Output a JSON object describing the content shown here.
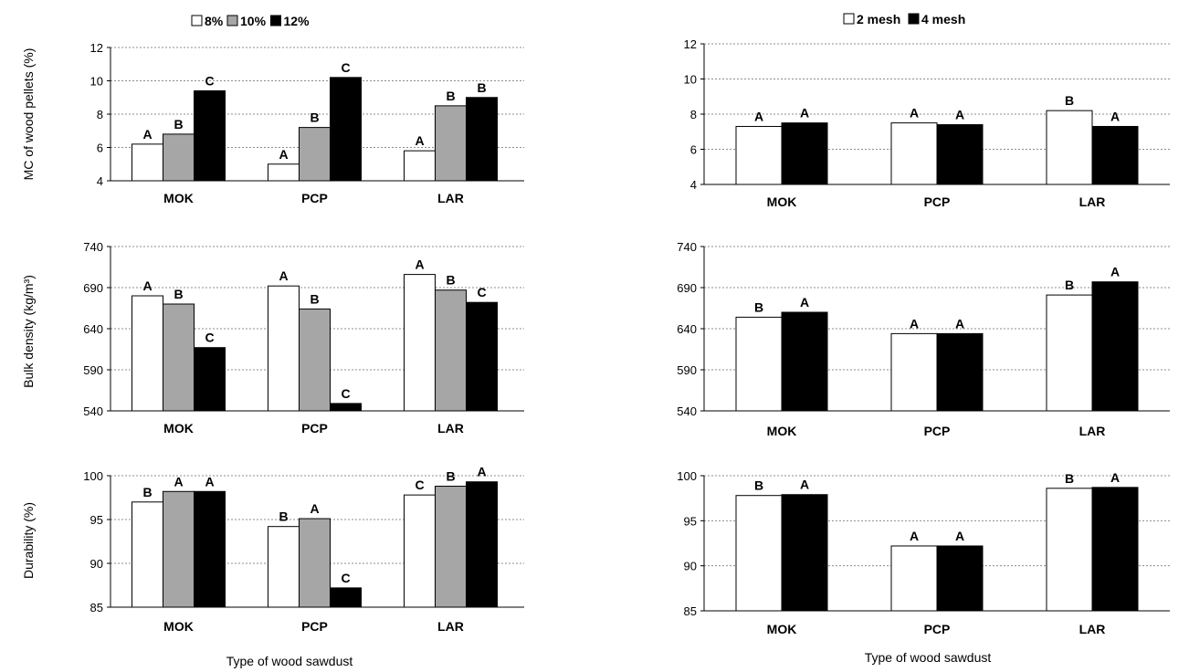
{
  "legends": {
    "left": [
      {
        "label": "8%",
        "color": "#ffffff"
      },
      {
        "label": "10%",
        "color": "#a6a6a6"
      },
      {
        "label": "12%",
        "color": "#000000"
      }
    ],
    "right": [
      {
        "label": "2 mesh",
        "color": "#ffffff"
      },
      {
        "label": "4 mesh",
        "color": "#000000"
      }
    ]
  },
  "row_ylabels": [
    "MC of wood pellets (%)",
    "Bulk density (kg/m³)",
    "Durability (%)"
  ],
  "xlabels": {
    "left": "Type of wood sawdust",
    "right": "Type of wood sawdust"
  },
  "chart_data": [
    {
      "type": "bar",
      "panel": "moisture-left",
      "categories": [
        "MOK",
        "PCP",
        "LAR"
      ],
      "ylim": [
        4,
        12
      ],
      "yticks": [
        4,
        6,
        8,
        10,
        12
      ],
      "grid": true,
      "series": [
        {
          "name": "8%",
          "values": [
            6.2,
            5.0,
            5.8
          ],
          "labels": [
            "A",
            "A",
            "A"
          ]
        },
        {
          "name": "10%",
          "values": [
            6.8,
            7.2,
            8.5
          ],
          "labels": [
            "B",
            "B",
            "B"
          ]
        },
        {
          "name": "12%",
          "values": [
            9.4,
            10.2,
            9.0
          ],
          "labels": [
            "C",
            "C",
            "B"
          ]
        }
      ]
    },
    {
      "type": "bar",
      "panel": "moisture-right",
      "categories": [
        "MOK",
        "PCP",
        "LAR"
      ],
      "ylim": [
        4,
        12
      ],
      "yticks": [
        4,
        6,
        8,
        10,
        12
      ],
      "grid": true,
      "series": [
        {
          "name": "2 mesh",
          "values": [
            7.3,
            7.5,
            8.2
          ],
          "labels": [
            "A",
            "A",
            "B"
          ]
        },
        {
          "name": "4 mesh",
          "values": [
            7.5,
            7.4,
            7.3
          ],
          "labels": [
            "A",
            "A",
            "A"
          ]
        }
      ]
    },
    {
      "type": "bar",
      "panel": "bulk-density-left",
      "categories": [
        "MOK",
        "PCP",
        "LAR"
      ],
      "ylim": [
        540,
        740
      ],
      "yticks": [
        540,
        590,
        640,
        690,
        740
      ],
      "grid": true,
      "series": [
        {
          "name": "8%",
          "values": [
            680,
            692,
            706
          ],
          "labels": [
            "A",
            "A",
            "A"
          ]
        },
        {
          "name": "10%",
          "values": [
            670,
            664,
            687
          ],
          "labels": [
            "B",
            "B",
            "B"
          ]
        },
        {
          "name": "12%",
          "values": [
            617,
            549,
            672
          ],
          "labels": [
            "C",
            "C",
            "C"
          ]
        }
      ]
    },
    {
      "type": "bar",
      "panel": "bulk-density-right",
      "categories": [
        "MOK",
        "PCP",
        "LAR"
      ],
      "ylim": [
        540,
        740
      ],
      "yticks": [
        540,
        590,
        640,
        690,
        740
      ],
      "grid": true,
      "series": [
        {
          "name": "2 mesh",
          "values": [
            654,
            634,
            681
          ],
          "labels": [
            "B",
            "A",
            "B"
          ]
        },
        {
          "name": "4 mesh",
          "values": [
            660,
            634,
            697
          ],
          "labels": [
            "A",
            "A",
            "A"
          ]
        }
      ]
    },
    {
      "type": "bar",
      "panel": "durability-left",
      "categories": [
        "MOK",
        "PCP",
        "LAR"
      ],
      "ylim": [
        85,
        100
      ],
      "yticks": [
        85,
        90,
        95,
        100
      ],
      "grid": true,
      "series": [
        {
          "name": "8%",
          "values": [
            97.0,
            94.2,
            97.8
          ],
          "labels": [
            "B",
            "B",
            "C"
          ]
        },
        {
          "name": "10%",
          "values": [
            98.2,
            95.1,
            98.8
          ],
          "labels": [
            "A",
            "A",
            "B"
          ]
        },
        {
          "name": "12%",
          "values": [
            98.2,
            87.2,
            99.3
          ],
          "labels": [
            "A",
            "C",
            "A"
          ]
        }
      ]
    },
    {
      "type": "bar",
      "panel": "durability-right",
      "categories": [
        "MOK",
        "PCP",
        "LAR"
      ],
      "ylim": [
        85,
        100
      ],
      "yticks": [
        85,
        90,
        95,
        100
      ],
      "grid": true,
      "series": [
        {
          "name": "2 mesh",
          "values": [
            97.8,
            92.2,
            98.6
          ],
          "labels": [
            "B",
            "A",
            "B"
          ]
        },
        {
          "name": "4 mesh",
          "values": [
            97.9,
            92.2,
            98.7
          ],
          "labels": [
            "A",
            "A",
            "A"
          ]
        }
      ]
    }
  ]
}
